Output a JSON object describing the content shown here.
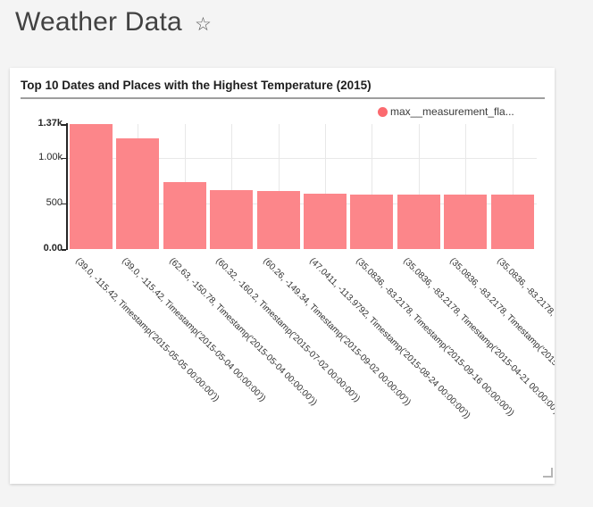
{
  "page": {
    "background": "#f4f4f4",
    "header": {
      "title": "Weather Data",
      "star_icon": "☆"
    }
  },
  "widget": {
    "title": "Top 10 Dates and Places with the Highest Temperature (2015)",
    "legend": {
      "label": "max__measurement_fla...",
      "marker_color": "#fb6a6f"
    }
  },
  "chart_data": {
    "type": "bar",
    "title": "Top 10 Dates and Places with the Highest Temperature (2015)",
    "series": [
      {
        "name": "max__measurement_fla...",
        "values": [
          1370,
          1215,
          733,
          650,
          638,
          607,
          596,
          595,
          594,
          593
        ]
      }
    ],
    "categories": [
      "(39.0, -115.42, Timestamp('2015-05-05 00:00:00'))",
      "(39.0, -115.42, Timestamp('2015-05-04 00:00:00'))",
      "(62.63, -150.78, Timestamp('2015-05-04 00:00:00'))",
      "(60.32, -160.2, Timestamp('2015-07-02 00:00:00'))",
      "(60.26, -149.34, Timestamp('2015-09-02 00:00:00'))",
      "(47.0411, -113.9792, Timestamp('2015-08-24 00:00:00'))",
      "(35.0836, -83.2178, Timestamp('2015-09-16 00:00:00'))",
      "(35.0836, -83.2178, Timestamp('2015-04-21 00:00:00'))",
      "(35.0836, -83.2178, Timestamp('2015-04-1",
      "(35.0836, -83.2178, Timestam"
    ],
    "bar_color": "#fc868a",
    "ylim": [
      0,
      1370
    ],
    "yticks": [
      {
        "label": "1.37k",
        "value": 1370,
        "bold": true,
        "grid": false
      },
      {
        "label": "1.00k",
        "value": 1000,
        "bold": false,
        "grid": true
      },
      {
        "label": "500",
        "value": 500,
        "bold": false,
        "grid": true
      },
      {
        "label": "0.00",
        "value": 0,
        "bold": true,
        "grid": false
      }
    ],
    "grid": true,
    "legend_position": "top-right",
    "x_label_rotation_deg": 45
  }
}
